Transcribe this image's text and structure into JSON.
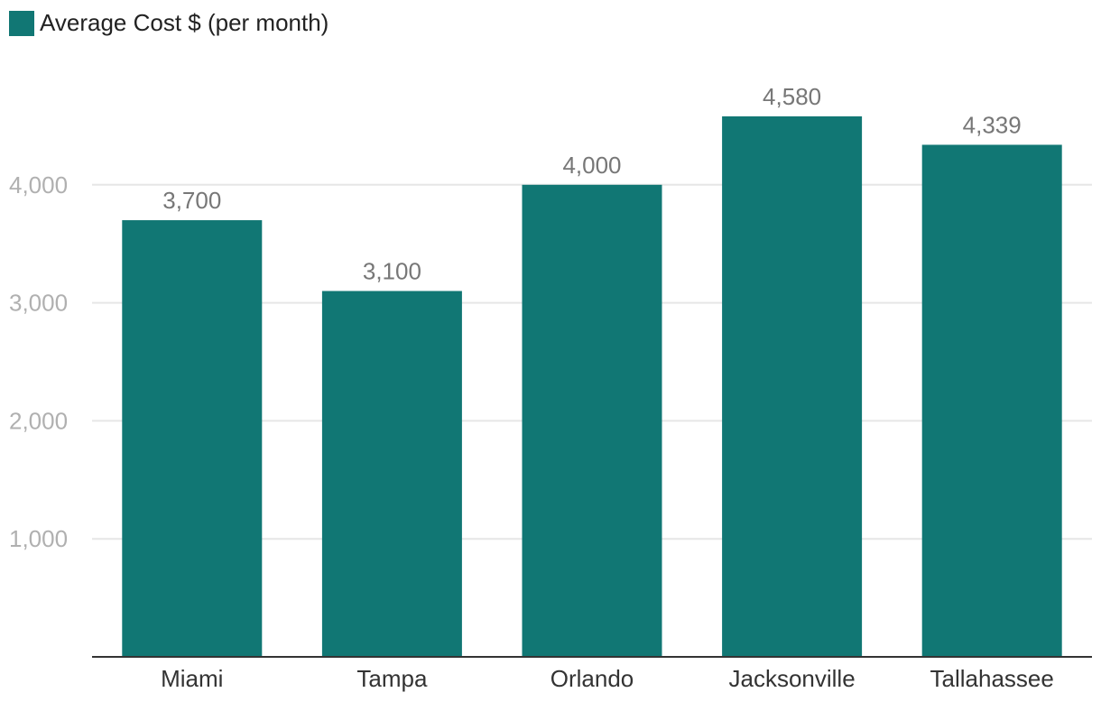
{
  "colors": {
    "bar": "#117774",
    "grid": "#e6e6e6",
    "axis": "#333333"
  },
  "legend": {
    "label": "Average Cost $ (per month)"
  },
  "chart_data": {
    "type": "bar",
    "title": "",
    "xlabel": "",
    "ylabel": "",
    "categories": [
      "Miami",
      "Tampa",
      "Orlando",
      "Jacksonville",
      "Tallahassee"
    ],
    "series": [
      {
        "name": "Average Cost $ (per month)",
        "values": [
          3700,
          3100,
          4000,
          4580,
          4339
        ]
      }
    ],
    "value_labels": [
      "3,700",
      "3,100",
      "4,000",
      "4,580",
      "4,339"
    ],
    "yticks": [
      1000,
      2000,
      3000,
      4000
    ],
    "ytick_labels": [
      "1,000",
      "2,000",
      "3,000",
      "4,000"
    ],
    "ylim": [
      0,
      4800
    ],
    "grid": true,
    "legend_position": "top-left"
  }
}
